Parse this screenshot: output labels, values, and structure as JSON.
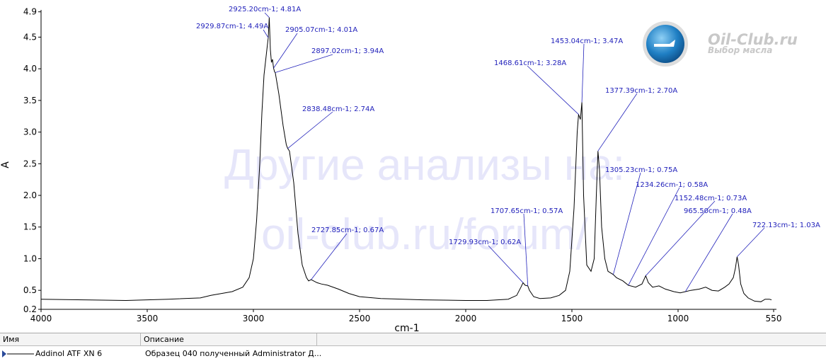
{
  "chart_data": {
    "type": "line",
    "xlabel": "cm-1",
    "ylabel": "A",
    "watermark": [
      "Другие анализы на:",
      "oil-club.ru/forum/"
    ],
    "logo": {
      "title": "Oil-Club.ru",
      "subtitle": "Выбор масла"
    },
    "xlim": [
      4000,
      550
    ],
    "ylim": [
      0.2,
      4.93
    ],
    "xticks": [
      4000,
      3500,
      3000,
      2500,
      2000,
      1500,
      1000,
      550
    ],
    "yticks": [
      0.2,
      0.5,
      {
        "value": 1,
        "label": "1.0"
      },
      1.5,
      {
        "value": 2,
        "label": "2.0"
      },
      2.5,
      {
        "value": 3,
        "label": "3.0"
      },
      3.5,
      {
        "value": 4,
        "label": "4.0"
      },
      4.5,
      4.9
    ],
    "x": [
      4000,
      3800,
      3600,
      3400,
      3250,
      3200,
      3150,
      3100,
      3050,
      3020,
      3000,
      2985,
      2970,
      2960,
      2950,
      2940,
      2935,
      2929.87,
      2925.2,
      2920,
      2915,
      2910,
      2905.07,
      2900,
      2897.02,
      2880,
      2860,
      2845,
      2838.48,
      2830,
      2810,
      2790,
      2770,
      2750,
      2740,
      2727.85,
      2700,
      2680,
      2650,
      2600,
      2550,
      2500,
      2400,
      2200,
      2000,
      1900,
      1800,
      1760,
      1740,
      1729.93,
      1720,
      1707.65,
      1700,
      1680,
      1650,
      1600,
      1560,
      1530,
      1510,
      1490,
      1475,
      1468.61,
      1460,
      1453.04,
      1445,
      1430,
      1410,
      1395,
      1385,
      1377.39,
      1370,
      1360,
      1345,
      1330,
      1305.23,
      1290,
      1260,
      1234.26,
      1200,
      1170,
      1152.48,
      1140,
      1120,
      1090,
      1060,
      1020,
      990,
      965.5,
      940,
      900,
      870,
      840,
      810,
      780,
      760,
      740,
      730,
      722.13,
      715,
      705,
      690,
      670,
      640,
      610,
      590,
      570,
      560
    ],
    "series": [
      {
        "name": "Addinol ATF XN 6",
        "color": "#000000",
        "values": [
          0.36,
          0.35,
          0.34,
          0.36,
          0.38,
          0.42,
          0.45,
          0.48,
          0.55,
          0.7,
          1.0,
          1.6,
          2.5,
          3.3,
          3.9,
          4.2,
          4.35,
          4.49,
          4.81,
          4.3,
          4.1,
          4.15,
          4.01,
          3.95,
          3.94,
          3.6,
          3.1,
          2.8,
          2.74,
          2.7,
          2.2,
          1.4,
          0.9,
          0.7,
          0.65,
          0.67,
          0.62,
          0.6,
          0.58,
          0.52,
          0.45,
          0.4,
          0.37,
          0.35,
          0.34,
          0.34,
          0.36,
          0.42,
          0.55,
          0.62,
          0.58,
          0.57,
          0.5,
          0.4,
          0.37,
          0.38,
          0.42,
          0.5,
          0.8,
          1.8,
          3.0,
          3.28,
          3.2,
          3.47,
          2.0,
          0.9,
          0.8,
          1.0,
          2.0,
          2.7,
          2.4,
          1.5,
          1.0,
          0.8,
          0.75,
          0.7,
          0.65,
          0.58,
          0.55,
          0.6,
          0.73,
          0.62,
          0.55,
          0.57,
          0.52,
          0.48,
          0.46,
          0.48,
          0.5,
          0.52,
          0.55,
          0.5,
          0.49,
          0.55,
          0.6,
          0.7,
          0.85,
          1.03,
          0.9,
          0.6,
          0.45,
          0.38,
          0.33,
          0.32,
          0.36,
          0.36,
          0.35
        ]
      }
    ],
    "annotations": [
      {
        "label": "2925.20cm-1; 4.81A",
        "x": 2925.2,
        "y": 4.81
      },
      {
        "label": "2929.87cm-1; 4.49A",
        "x": 2929.87,
        "y": 4.49
      },
      {
        "label": "2905.07cm-1; 4.01A",
        "x": 2905.07,
        "y": 4.01
      },
      {
        "label": "2897.02cm-1; 3.94A",
        "x": 2897.02,
        "y": 3.94
      },
      {
        "label": "2838.48cm-1; 2.74A",
        "x": 2838.48,
        "y": 2.74
      },
      {
        "label": "2727.85cm-1; 0.67A",
        "x": 2727.85,
        "y": 0.67
      },
      {
        "label": "1729.93cm-1; 0.62A",
        "x": 1729.93,
        "y": 0.62
      },
      {
        "label": "1707.65cm-1; 0.57A",
        "x": 1707.65,
        "y": 0.57
      },
      {
        "label": "1468.61cm-1; 3.28A",
        "x": 1468.61,
        "y": 3.28
      },
      {
        "label": "1453.04cm-1; 3.47A",
        "x": 1453.04,
        "y": 3.47
      },
      {
        "label": "1377.39cm-1; 2.70A",
        "x": 1377.39,
        "y": 2.7
      },
      {
        "label": "1305.23cm-1; 0.75A",
        "x": 1305.23,
        "y": 0.75
      },
      {
        "label": "1234.26cm-1; 0.58A",
        "x": 1234.26,
        "y": 0.58
      },
      {
        "label": "1152.48cm-1; 0.73A",
        "x": 1152.48,
        "y": 0.73
      },
      {
        "label": "965.50cm-1; 0.48A",
        "x": 965.5,
        "y": 0.48
      },
      {
        "label": "722.13cm-1; 1.03A",
        "x": 722.13,
        "y": 1.03
      }
    ]
  },
  "table": {
    "headers": [
      "Имя",
      "Описание"
    ],
    "rows": [
      [
        "Addinol ATF XN 6",
        "Образец 040 полученный Administrator Д..."
      ]
    ]
  }
}
